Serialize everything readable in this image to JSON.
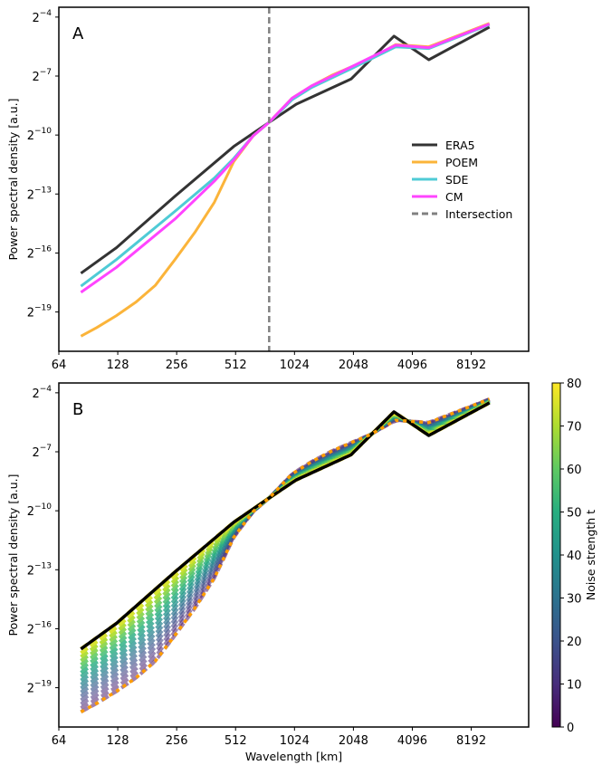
{
  "chart_data": [
    {
      "panel_label": "A",
      "type": "line",
      "ylabel": "Power spectral density [a.u.]",
      "xlabel": "",
      "xscale": "log2",
      "yscale": "log2",
      "xlim": [
        64,
        16100
      ],
      "ylim": [
        4.77e-07,
        0.0884
      ],
      "xticks": [
        64,
        128,
        256,
        512,
        1024,
        2048,
        4096,
        8192
      ],
      "yticks": [
        {
          "base": "2",
          "exp": "−4",
          "value": 0.0625
        },
        {
          "base": "2",
          "exp": "−7",
          "value": 0.0078125
        },
        {
          "base": "2",
          "exp": "−10",
          "value": 0.0009765625
        },
        {
          "base": "2",
          "exp": "−13",
          "value": 0.0001220703
        },
        {
          "base": "2",
          "exp": "−16",
          "value": 1.52588e-05
        },
        {
          "base": "2",
          "exp": "−19",
          "value": 1.9073e-06
        }
      ],
      "legend_position": "center-right",
      "series": [
        {
          "name": "ERA5",
          "color": "#333333",
          "x": [
            83,
            126,
            251,
            501,
            760,
            1045,
            1992,
            3300,
            4973,
            10155
          ],
          "y": [
            7.47e-06,
            1.84e-05,
            0.000113,
            0.000653,
            0.00153,
            0.0029,
            0.00704,
            0.0319,
            0.0139,
            0.0439
          ]
        },
        {
          "name": "POEM",
          "color": "#fbb43a",
          "x": [
            83,
            100,
            126,
            159,
            199,
            251,
            317,
            399,
            501,
            630,
            760,
            996,
            1252,
            1585,
            1992,
            2504,
            3372,
            4973,
            10155
          ],
          "y": [
            8.13e-07,
            1.1e-06,
            1.68e-06,
            2.72e-06,
            4.86e-06,
            1.21e-05,
            3.14e-05,
            9.12e-05,
            0.000383,
            0.00095,
            0.00153,
            0.00359,
            0.00552,
            0.00798,
            0.01075,
            0.01438,
            0.0237,
            0.0219,
            0.0501
          ]
        },
        {
          "name": "SDE",
          "color": "#4fcbd6",
          "x": [
            83,
            126,
            251,
            399,
            501,
            630,
            760,
            996,
            1252,
            1992,
            3372,
            4973,
            10155
          ],
          "y": [
            4.73e-06,
            1.21e-05,
            6.63e-05,
            0.000214,
            0.000428,
            0.00095,
            0.00153,
            0.0034,
            0.00523,
            0.0101,
            0.0219,
            0.0206,
            0.048
          ]
        },
        {
          "name": "CM",
          "color": "#ff44ff",
          "x": [
            83,
            126,
            251,
            399,
            501,
            630,
            760,
            996,
            1252,
            1992,
            3372,
            4973,
            10155
          ],
          "y": [
            3.81e-06,
            9.2e-06,
            5.06e-05,
            0.000192,
            0.000405,
            0.00095,
            0.00153,
            0.00359,
            0.00552,
            0.01075,
            0.0232,
            0.0213,
            0.049
          ]
        }
      ],
      "vline": {
        "name": "Intersection",
        "x": 760,
        "color": "#808080",
        "style": "dashed"
      }
    },
    {
      "panel_label": "B",
      "type": "line",
      "ylabel": "Power spectral density [a.u.]",
      "xlabel": "Wavelength [km]",
      "xscale": "log2",
      "yscale": "log2",
      "xlim": [
        64,
        16100
      ],
      "ylim": [
        4.77e-07,
        0.0884
      ],
      "xticks": [
        64,
        128,
        256,
        512,
        1024,
        2048,
        4096,
        8192
      ],
      "yticks": [
        {
          "base": "2",
          "exp": "−4",
          "value": 0.0625
        },
        {
          "base": "2",
          "exp": "−7",
          "value": 0.0078125
        },
        {
          "base": "2",
          "exp": "−10",
          "value": 0.0009765625
        },
        {
          "base": "2",
          "exp": "−13",
          "value": 0.0001220703
        },
        {
          "base": "2",
          "exp": "−16",
          "value": 1.52588e-05
        },
        {
          "base": "2",
          "exp": "−19",
          "value": 1.9073e-06
        }
      ],
      "reference_series": [
        "ERA5",
        "POEM"
      ],
      "noise_levels": [
        0,
        5,
        10,
        15,
        20,
        25,
        30,
        35,
        40,
        45,
        50,
        55,
        60,
        65,
        70,
        75,
        80
      ],
      "colorbar": {
        "label": "Noise strength t",
        "colormap": "viridis",
        "range": [
          0,
          80
        ],
        "ticks": [
          0,
          10,
          20,
          30,
          40,
          50,
          60,
          70,
          80
        ]
      }
    }
  ]
}
